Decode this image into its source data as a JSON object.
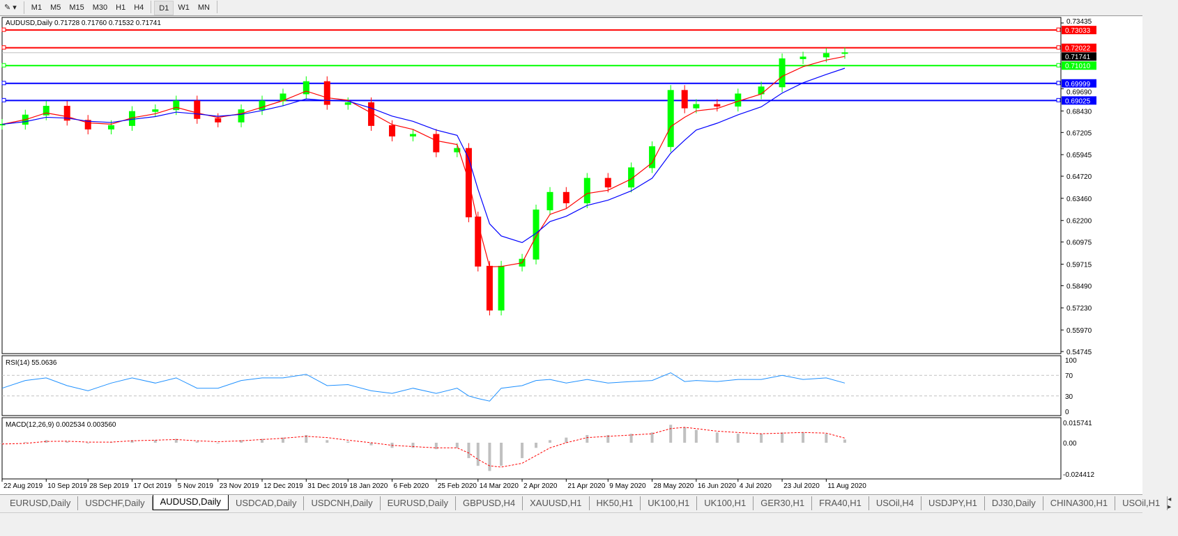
{
  "toolbar": {
    "timeframes": [
      "M1",
      "M5",
      "M15",
      "M30",
      "H1",
      "H4",
      "D1",
      "W1",
      "MN"
    ],
    "active": "D1"
  },
  "chart_title": "AUDUSD,Daily  0.71728 0.71760 0.71532 0.71741",
  "rsi_label": "RSI(14) 55.0636",
  "macd_label": "MACD(12,26,9) 0.002534 0.003560",
  "tabs": [
    "EURUSD,Daily",
    "USDCHF,Daily",
    "AUDUSD,Daily",
    "USDCAD,Daily",
    "USDCNH,Daily",
    "EURUSD,Daily",
    "GBPUSD,H4",
    "XAUUSD,H1",
    "HK50,H1",
    "UK100,H1",
    "UK100,H1",
    "GER30,H1",
    "FRA40,H1",
    "USOil,H4",
    "USDJPY,H1",
    "DJ30,Daily",
    "CHINA300,H1",
    "USOil,H1"
  ],
  "active_tab": "AUDUSD,Daily",
  "chart_data": {
    "type": "candlestick",
    "symbol": "AUDUSD",
    "timeframe": "Daily",
    "ylim": [
      0.54745,
      0.73435
    ],
    "y_ticks": [
      "0.73435",
      "0.69690",
      "0.68430",
      "0.67205",
      "0.65945",
      "0.64720",
      "0.63460",
      "0.62200",
      "0.60975",
      "0.59715",
      "0.58490",
      "0.57230",
      "0.55970",
      "0.54745"
    ],
    "x_ticks": [
      "22 Aug 2019",
      "10 Sep 2019",
      "28 Sep 2019",
      "17 Oct 2019",
      "5 Nov 2019",
      "23 Nov 2019",
      "12 Dec 2019",
      "31 Dec 2019",
      "18 Jan 2020",
      "6 Feb 2020",
      "25 Feb 2020",
      "14 Mar 2020",
      "2 Apr 2020",
      "21 Apr 2020",
      "9 May 2020",
      "28 May 2020",
      "16 Jun 2020",
      "4 Jul 2020",
      "23 Jul 2020",
      "11 Aug 2020"
    ],
    "dates": [
      "2019-08-22",
      "2019-09-01",
      "2019-09-10",
      "2019-09-19",
      "2019-09-28",
      "2019-10-08",
      "2019-10-17",
      "2019-10-27",
      "2019-11-05",
      "2019-11-14",
      "2019-11-23",
      "2019-12-03",
      "2019-12-12",
      "2019-12-21",
      "2019-12-31",
      "2020-01-09",
      "2020-01-18",
      "2020-01-28",
      "2020-02-06",
      "2020-02-15",
      "2020-02-25",
      "2020-03-05",
      "2020-03-10",
      "2020-03-14",
      "2020-03-19",
      "2020-03-24",
      "2020-04-02",
      "2020-04-08",
      "2020-04-14",
      "2020-04-21",
      "2020-04-30",
      "2020-05-09",
      "2020-05-19",
      "2020-05-28",
      "2020-06-05",
      "2020-06-11",
      "2020-06-16",
      "2020-06-25",
      "2020-07-04",
      "2020-07-14",
      "2020-07-23",
      "2020-08-01",
      "2020-08-11",
      "2020-08-19"
    ],
    "close": [
      0.6767,
      0.682,
      0.687,
      0.679,
      0.674,
      0.676,
      0.684,
      0.685,
      0.69,
      0.68,
      0.678,
      0.685,
      0.69,
      0.694,
      0.701,
      0.688,
      0.689,
      0.676,
      0.67,
      0.671,
      0.661,
      0.663,
      0.624,
      0.596,
      0.571,
      0.596,
      0.6,
      0.628,
      0.638,
      0.632,
      0.646,
      0.641,
      0.652,
      0.664,
      0.696,
      0.686,
      0.688,
      0.687,
      0.694,
      0.698,
      0.714,
      0.715,
      0.717,
      0.71741
    ],
    "last_price": "0.71741",
    "hlines": [
      {
        "value": "0.73033",
        "color": "#ff0000"
      },
      {
        "value": "0.72022",
        "color": "#ff0000"
      },
      {
        "value": "0.71010",
        "color": "#00ff00"
      },
      {
        "value": "0.69999",
        "color": "#0000ff"
      },
      {
        "value": "0.69025",
        "color": "#0000ff"
      }
    ],
    "colors": {
      "up": "#00ff00",
      "down": "#ff0000",
      "ma_fast": "#ff0000",
      "ma_slow": "#0000ff",
      "rsi": "#1e90ff",
      "macd_signal": "#ff0000",
      "macd_hist": "#c0c0c0"
    },
    "rsi": {
      "ylim": [
        0,
        100
      ],
      "levels": [
        70,
        30
      ],
      "ticks": [
        "100",
        "70",
        "30",
        "0"
      ],
      "values": [
        45,
        60,
        65,
        50,
        40,
        55,
        65,
        55,
        65,
        45,
        45,
        60,
        65,
        65,
        72,
        50,
        52,
        40,
        35,
        45,
        35,
        45,
        30,
        25,
        20,
        45,
        50,
        60,
        62,
        55,
        62,
        55,
        58,
        60,
        75,
        58,
        60,
        58,
        62,
        62,
        70,
        62,
        65,
        55
      ]
    },
    "macd": {
      "ylim": [
        -0.024412,
        0.015741
      ],
      "ticks": [
        "0.015741",
        "0.00",
        "-0.024412"
      ],
      "hist": [
        -0.001,
        0.0005,
        0.002,
        0.001,
        -0.0005,
        0.0005,
        0.002,
        0.002,
        0.003,
        0.001,
        0.0,
        0.002,
        0.003,
        0.004,
        0.006,
        0.002,
        0.001,
        -0.002,
        -0.004,
        -0.004,
        -0.005,
        -0.004,
        -0.012,
        -0.018,
        -0.022,
        -0.018,
        -0.012,
        -0.004,
        0.002,
        0.004,
        0.006,
        0.006,
        0.007,
        0.008,
        0.014,
        0.012,
        0.01,
        0.008,
        0.007,
        0.007,
        0.008,
        0.008,
        0.007,
        0.0025
      ],
      "signal": [
        -0.001,
        -0.0005,
        0.001,
        0.0012,
        0.0005,
        0.0005,
        0.0015,
        0.002,
        0.0025,
        0.0015,
        0.0008,
        0.0015,
        0.0025,
        0.0035,
        0.005,
        0.004,
        0.002,
        0.0,
        -0.002,
        -0.003,
        -0.004,
        -0.004,
        -0.008,
        -0.013,
        -0.018,
        -0.019,
        -0.016,
        -0.01,
        -0.004,
        0.0,
        0.004,
        0.005,
        0.006,
        0.007,
        0.011,
        0.012,
        0.011,
        0.009,
        0.008,
        0.007,
        0.0075,
        0.008,
        0.0075,
        0.0036
      ]
    }
  }
}
